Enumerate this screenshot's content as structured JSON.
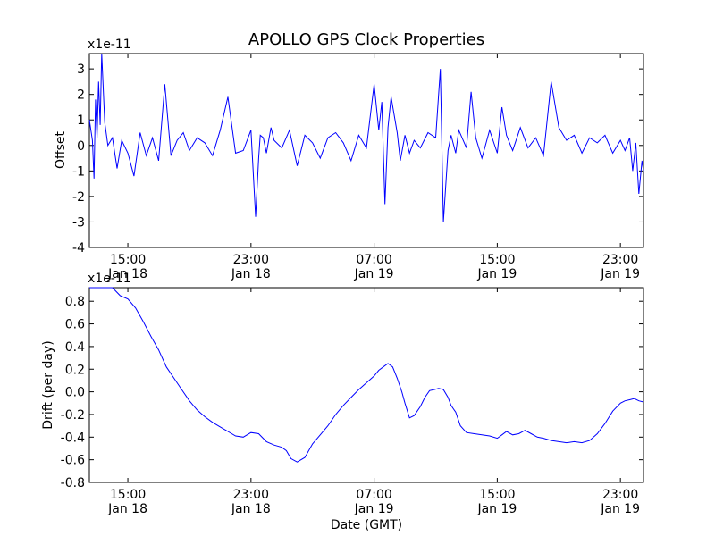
{
  "figure_title": "APOLLO GPS Clock Properties",
  "xlabel": "Date (GMT)",
  "chart_data": [
    {
      "type": "line",
      "name": "offset",
      "ylabel": "Offset",
      "scale_note": "x1e-11",
      "ylim": [
        -4,
        3.6
      ],
      "yticks": [
        "-4",
        "-3",
        "-2",
        "-1",
        "0",
        "1",
        "2",
        "3"
      ],
      "ytick_values": [
        -4,
        -3,
        -2,
        -1,
        0,
        1,
        2,
        3
      ],
      "xlim_hours": [
        12.5,
        48.5
      ],
      "xticks": [
        {
          "hour": 15,
          "time": "15:00",
          "date": "Jan 18"
        },
        {
          "hour": 23,
          "time": "23:00",
          "date": "Jan 18"
        },
        {
          "hour": 31,
          "time": "07:00",
          "date": "Jan 19"
        },
        {
          "hour": 39,
          "time": "15:00",
          "date": "Jan 19"
        },
        {
          "hour": 47,
          "time": "23:00",
          "date": "Jan 19"
        }
      ],
      "series_color": "#0000ff",
      "series": [
        {
          "name": "offset",
          "x_hours": [
            12.5,
            12.7,
            12.8,
            12.9,
            13.0,
            13.1,
            13.2,
            13.3,
            13.5,
            13.7,
            14.0,
            14.3,
            14.6,
            15.0,
            15.4,
            15.8,
            16.2,
            16.6,
            17.0,
            17.4,
            17.8,
            18.2,
            18.6,
            19.0,
            19.5,
            20.0,
            20.5,
            21.0,
            21.5,
            22.0,
            22.5,
            23.0,
            23.3,
            23.5,
            23.6,
            23.8,
            24.0,
            24.3,
            24.5,
            25.0,
            25.5,
            26.0,
            26.5,
            27.0,
            27.5,
            28.0,
            28.5,
            29.0,
            29.5,
            30.0,
            30.5,
            31.0,
            31.3,
            31.5,
            31.7,
            31.9,
            32.1,
            32.3,
            32.5,
            32.7,
            33.0,
            33.3,
            33.6,
            34.0,
            34.5,
            35.0,
            35.3,
            35.5,
            35.8,
            36.0,
            36.3,
            36.5,
            37.0,
            37.3,
            37.6,
            38.0,
            38.5,
            39.0,
            39.3,
            39.6,
            40.0,
            40.5,
            41.0,
            41.5,
            42.0,
            42.5,
            43.0,
            43.5,
            44.0,
            44.5,
            45.0,
            45.5,
            46.0,
            46.5,
            47.0,
            47.3,
            47.6,
            47.8,
            48.0,
            48.2,
            48.4,
            48.5
          ],
          "values": [
            1.0,
            0.2,
            -1.3,
            1.8,
            0.3,
            2.5,
            0.8,
            3.6,
            0.9,
            0.0,
            0.3,
            -0.9,
            0.2,
            -0.3,
            -1.2,
            0.5,
            -0.4,
            0.3,
            -0.6,
            2.4,
            -0.4,
            0.2,
            0.5,
            -0.2,
            0.3,
            0.1,
            -0.4,
            0.6,
            1.9,
            -0.3,
            -0.2,
            0.6,
            -2.8,
            -0.5,
            0.4,
            0.3,
            -0.3,
            0.7,
            0.2,
            -0.1,
            0.6,
            -0.8,
            0.4,
            0.1,
            -0.5,
            0.3,
            0.5,
            0.1,
            -0.6,
            0.4,
            -0.1,
            2.4,
            0.6,
            1.7,
            -2.3,
            0.7,
            1.9,
            1.2,
            0.5,
            -0.6,
            0.4,
            -0.3,
            0.2,
            -0.1,
            0.5,
            0.3,
            3.0,
            -3.0,
            -0.2,
            0.4,
            -0.3,
            0.6,
            -0.1,
            2.1,
            0.3,
            -0.5,
            0.6,
            -0.3,
            1.5,
            0.4,
            -0.2,
            0.7,
            -0.1,
            0.3,
            -0.4,
            2.5,
            0.7,
            0.2,
            0.4,
            -0.3,
            0.3,
            0.1,
            0.4,
            -0.3,
            0.2,
            -0.2,
            0.3,
            -1.0,
            0.1,
            -1.9,
            -0.6,
            -1.0
          ]
        }
      ]
    },
    {
      "type": "line",
      "name": "drift",
      "ylabel": "Drift (per day)",
      "scale_note": "x1e-11",
      "ylim": [
        -0.8,
        0.92
      ],
      "yticks": [
        "-0.8",
        "-0.6",
        "-0.4",
        "-0.2",
        "0.0",
        "0.2",
        "0.4",
        "0.6",
        "0.8"
      ],
      "ytick_values": [
        -0.8,
        -0.6,
        -0.4,
        -0.2,
        0.0,
        0.2,
        0.4,
        0.6,
        0.8
      ],
      "xlim_hours": [
        12.5,
        48.5
      ],
      "xticks": [
        {
          "hour": 15,
          "time": "15:00",
          "date": "Jan 18"
        },
        {
          "hour": 23,
          "time": "23:00",
          "date": "Jan 18"
        },
        {
          "hour": 31,
          "time": "07:00",
          "date": "Jan 19"
        },
        {
          "hour": 39,
          "time": "15:00",
          "date": "Jan 19"
        },
        {
          "hour": 47,
          "time": "23:00",
          "date": "Jan 19"
        }
      ],
      "series_color": "#0000ff",
      "series": [
        {
          "name": "drift",
          "x_hours": [
            12.5,
            12.8,
            13.2,
            13.5,
            13.8,
            14.0,
            14.5,
            15.0,
            15.5,
            16.0,
            16.5,
            17.0,
            17.5,
            18.0,
            18.5,
            19.0,
            19.5,
            20.0,
            20.5,
            21.0,
            21.5,
            22.0,
            22.5,
            23.0,
            23.5,
            24.0,
            24.5,
            25.0,
            25.3,
            25.6,
            26.0,
            26.5,
            27.0,
            27.5,
            28.0,
            28.5,
            29.0,
            29.5,
            30.0,
            30.5,
            31.0,
            31.3,
            31.6,
            31.9,
            32.2,
            32.5,
            32.8,
            33.0,
            33.3,
            33.6,
            34.0,
            34.3,
            34.6,
            34.9,
            35.2,
            35.5,
            35.8,
            36.0,
            36.3,
            36.6,
            37.0,
            37.5,
            38.0,
            38.5,
            39.0,
            39.3,
            39.6,
            40.0,
            40.4,
            40.8,
            41.2,
            41.6,
            42.0,
            42.5,
            43.0,
            43.5,
            44.0,
            44.5,
            45.0,
            45.5,
            46.0,
            46.5,
            47.0,
            47.3,
            47.6,
            47.9,
            48.2,
            48.5
          ],
          "values": [
            0.93,
            0.94,
            0.92,
            0.93,
            0.95,
            0.92,
            0.85,
            0.82,
            0.74,
            0.62,
            0.49,
            0.37,
            0.22,
            0.12,
            0.02,
            -0.08,
            -0.16,
            -0.22,
            -0.27,
            -0.31,
            -0.35,
            -0.39,
            -0.4,
            -0.36,
            -0.37,
            -0.44,
            -0.47,
            -0.49,
            -0.52,
            -0.59,
            -0.62,
            -0.58,
            -0.46,
            -0.38,
            -0.3,
            -0.2,
            -0.12,
            -0.05,
            0.02,
            0.08,
            0.14,
            0.19,
            0.22,
            0.25,
            0.22,
            0.12,
            0.0,
            -0.1,
            -0.23,
            -0.21,
            -0.13,
            -0.05,
            0.01,
            0.02,
            0.03,
            0.02,
            -0.05,
            -0.12,
            -0.18,
            -0.3,
            -0.36,
            -0.37,
            -0.38,
            -0.39,
            -0.41,
            -0.38,
            -0.35,
            -0.38,
            -0.37,
            -0.34,
            -0.37,
            -0.4,
            -0.41,
            -0.43,
            -0.44,
            -0.45,
            -0.44,
            -0.45,
            -0.43,
            -0.37,
            -0.28,
            -0.17,
            -0.1,
            -0.08,
            -0.07,
            -0.06,
            -0.08,
            -0.09
          ]
        }
      ]
    }
  ]
}
